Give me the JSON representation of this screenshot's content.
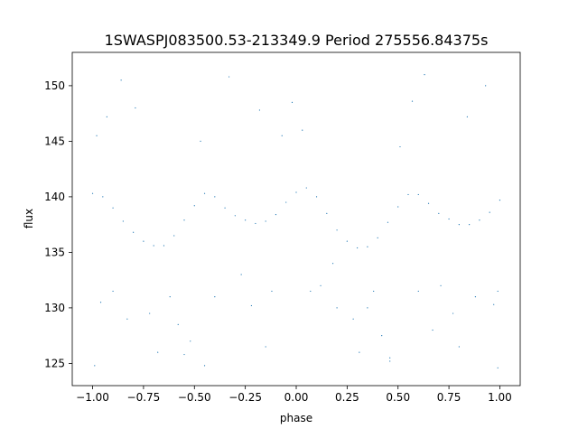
{
  "chart_data": {
    "type": "scatter",
    "title": "1SWASPJ083500.53-213349.9 Period 275556.84375s",
    "xlabel": "phase",
    "ylabel": "flux",
    "xlim": [
      -1.1,
      1.1
    ],
    "ylim": [
      123.0,
      153.0
    ],
    "xticks": [
      -1.0,
      -0.75,
      -0.5,
      -0.25,
      0.0,
      0.25,
      0.5,
      0.75,
      1.0
    ],
    "xtick_labels": [
      "−1.00",
      "−0.75",
      "−0.50",
      "−0.25",
      "0.00",
      "0.25",
      "0.50",
      "0.75",
      "1.00"
    ],
    "yticks": [
      125,
      130,
      135,
      140,
      145,
      150
    ],
    "ytick_labels": [
      "125",
      "130",
      "135",
      "140",
      "145",
      "150"
    ],
    "grid": false,
    "legend": "none",
    "series": [
      {
        "color": "#1f77b4",
        "marker_size": 0.6,
        "points": [
          [
            -1.0,
            140.3
          ],
          [
            -0.95,
            140.0
          ],
          [
            -0.9,
            139.0
          ],
          [
            -0.85,
            137.8
          ],
          [
            -0.8,
            136.8
          ],
          [
            -0.75,
            136.0
          ],
          [
            -0.7,
            135.6
          ],
          [
            -0.65,
            135.6
          ],
          [
            -0.6,
            136.5
          ],
          [
            -0.55,
            137.9
          ],
          [
            -0.5,
            139.2
          ],
          [
            -0.45,
            140.3
          ],
          [
            -0.4,
            140.0
          ],
          [
            -0.35,
            139.0
          ],
          [
            -0.3,
            138.3
          ],
          [
            -0.25,
            137.9
          ],
          [
            -0.2,
            137.6
          ],
          [
            -0.15,
            137.8
          ],
          [
            -0.1,
            138.4
          ],
          [
            -0.05,
            139.5
          ],
          [
            0.0,
            140.4
          ],
          [
            0.05,
            140.8
          ],
          [
            0.1,
            140.0
          ],
          [
            0.15,
            138.5
          ],
          [
            0.2,
            137.0
          ],
          [
            0.25,
            136.0
          ],
          [
            0.3,
            135.4
          ],
          [
            0.35,
            135.5
          ],
          [
            0.4,
            136.3
          ],
          [
            0.45,
            137.7
          ],
          [
            0.5,
            139.1
          ],
          [
            0.55,
            140.2
          ],
          [
            0.6,
            140.2
          ],
          [
            0.65,
            139.4
          ],
          [
            0.7,
            138.5
          ],
          [
            0.75,
            138.0
          ],
          [
            0.8,
            137.5
          ],
          [
            0.85,
            137.5
          ],
          [
            0.9,
            137.9
          ],
          [
            0.95,
            138.6
          ],
          [
            1.0,
            139.7
          ],
          [
            -0.98,
            145.5
          ],
          [
            -0.93,
            147.2
          ],
          [
            -0.86,
            150.5
          ],
          [
            -0.79,
            148.0
          ],
          [
            -0.62,
            131.0
          ],
          [
            -0.58,
            128.5
          ],
          [
            -0.55,
            125.8
          ],
          [
            -0.52,
            127.0
          ],
          [
            -0.47,
            145.0
          ],
          [
            -0.33,
            150.8
          ],
          [
            -0.27,
            133.0
          ],
          [
            -0.18,
            147.8
          ],
          [
            -0.12,
            131.5
          ],
          [
            -0.07,
            145.5
          ],
          [
            -0.02,
            148.5
          ],
          [
            0.03,
            146.0
          ],
          [
            0.12,
            132.0
          ],
          [
            0.2,
            130.0
          ],
          [
            0.31,
            126.0
          ],
          [
            0.38,
            131.5
          ],
          [
            0.42,
            127.5
          ],
          [
            0.46,
            125.2
          ],
          [
            0.51,
            144.5
          ],
          [
            0.57,
            148.6
          ],
          [
            0.63,
            151.0
          ],
          [
            0.71,
            132.0
          ],
          [
            0.77,
            129.5
          ],
          [
            0.84,
            147.2
          ],
          [
            0.88,
            131.0
          ],
          [
            0.93,
            150.0
          ],
          [
            0.97,
            130.3
          ],
          [
            -0.96,
            130.5
          ],
          [
            -0.9,
            131.5
          ],
          [
            -0.83,
            129.0
          ],
          [
            -0.72,
            129.5
          ],
          [
            -0.68,
            126.0
          ],
          [
            -0.4,
            131.0
          ],
          [
            -0.22,
            130.2
          ],
          [
            -0.15,
            126.5
          ],
          [
            0.07,
            131.5
          ],
          [
            0.18,
            134.0
          ],
          [
            0.28,
            129.0
          ],
          [
            0.35,
            130.0
          ],
          [
            0.6,
            131.5
          ],
          [
            0.67,
            128.0
          ],
          [
            0.8,
            126.5
          ],
          [
            0.99,
            131.5
          ],
          [
            -0.99,
            124.8
          ],
          [
            0.99,
            124.6
          ],
          [
            -0.45,
            124.8
          ],
          [
            0.46,
            125.5
          ]
        ]
      }
    ]
  }
}
